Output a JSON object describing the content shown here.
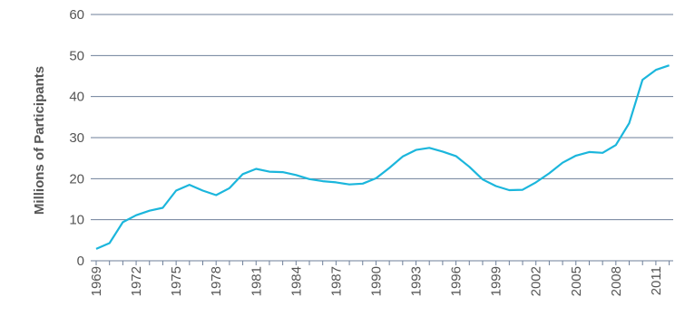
{
  "chart_data": {
    "type": "line",
    "ylabel": "Millions of  Participants",
    "xlabel": "",
    "ylim": [
      0,
      60
    ],
    "yticks": [
      0,
      10,
      20,
      30,
      40,
      50,
      60
    ],
    "xticks": [
      "1969",
      "1972",
      "1975",
      "1978",
      "1981",
      "1984",
      "1987",
      "1990",
      "1993",
      "1996",
      "1999",
      "2002",
      "2005",
      "2008",
      "2011"
    ],
    "grid": "horizontal",
    "legend": "none",
    "line_color": "#1bb6dc",
    "grid_color": "#6e7f99",
    "x": [
      1969,
      1970,
      1971,
      1972,
      1973,
      1974,
      1975,
      1976,
      1977,
      1978,
      1979,
      1980,
      1981,
      1982,
      1983,
      1984,
      1985,
      1986,
      1987,
      1988,
      1989,
      1990,
      1991,
      1992,
      1993,
      1994,
      1995,
      1996,
      1997,
      1998,
      1999,
      2000,
      2001,
      2002,
      2003,
      2004,
      2005,
      2006,
      2007,
      2008,
      2009,
      2010,
      2011,
      2012
    ],
    "values": [
      2.9,
      4.3,
      9.4,
      11.1,
      12.2,
      12.9,
      17.1,
      18.5,
      17.1,
      16.0,
      17.7,
      21.1,
      22.4,
      21.7,
      21.6,
      20.9,
      19.9,
      19.4,
      19.1,
      18.6,
      18.8,
      20.1,
      22.6,
      25.4,
      27.0,
      27.5,
      26.6,
      25.5,
      22.9,
      19.8,
      18.2,
      17.2,
      17.3,
      19.1,
      21.3,
      23.9,
      25.6,
      26.5,
      26.3,
      28.2,
      33.5,
      44.1,
      46.5,
      47.6
    ]
  }
}
